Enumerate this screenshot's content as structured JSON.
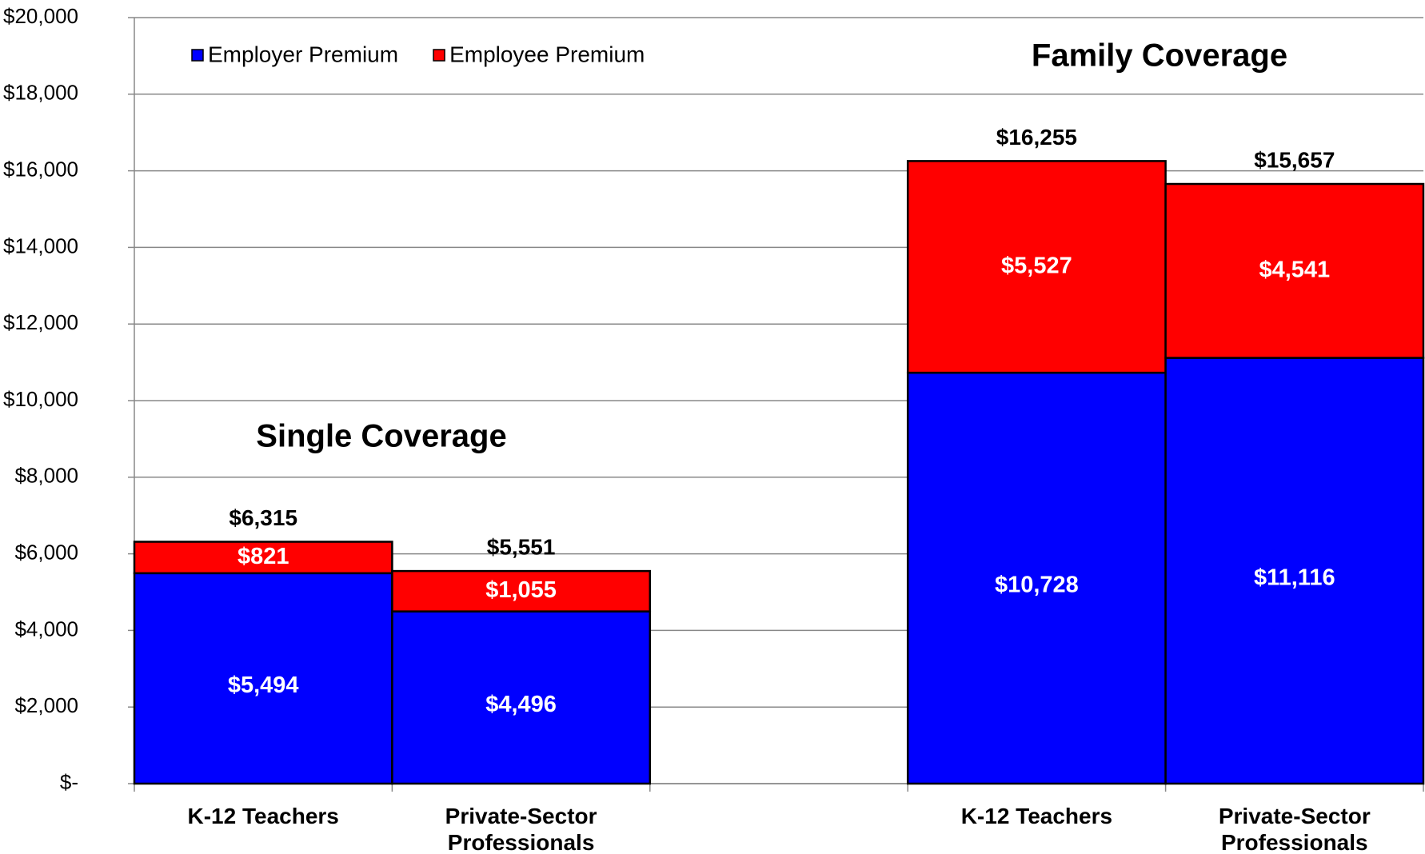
{
  "chart_data": {
    "type": "stacked-bar",
    "categories": [
      "K-12 Teachers",
      "Private-Sector Professionals",
      null,
      "K-12 Teachers",
      "Private-Sector Professionals"
    ],
    "series": [
      {
        "name": "Employer Premium",
        "color": "#0000ff",
        "values": [
          5494,
          4496,
          null,
          10728,
          11116
        ],
        "value_labels": [
          "$5,494",
          "$4,496",
          null,
          "$10,728",
          "$11,116"
        ]
      },
      {
        "name": "Employee Premium",
        "color": "#ff0000",
        "values": [
          821,
          1055,
          null,
          5527,
          4541
        ],
        "value_labels": [
          "$821",
          "$1,055",
          null,
          "$5,527",
          "$4,541"
        ]
      }
    ],
    "totals": {
      "values": [
        6315,
        5551,
        null,
        16255,
        15657
      ],
      "value_labels": [
        "$6,315",
        "$5,551",
        null,
        "$16,255",
        "$15,657"
      ]
    },
    "annotations": [
      "Single Coverage",
      "Family Coverage"
    ],
    "ylim": [
      0,
      20000
    ],
    "yticks": [
      {
        "value": 0,
        "label": "$-"
      },
      {
        "value": 2000,
        "label": "$2,000"
      },
      {
        "value": 4000,
        "label": "$4,000"
      },
      {
        "value": 6000,
        "label": "$6,000"
      },
      {
        "value": 8000,
        "label": "$8,000"
      },
      {
        "value": 10000,
        "label": "$10,000"
      },
      {
        "value": 12000,
        "label": "$12,000"
      },
      {
        "value": 14000,
        "label": "$14,000"
      },
      {
        "value": 16000,
        "label": "$16,000"
      },
      {
        "value": 18000,
        "label": "$18,000"
      },
      {
        "value": 20000,
        "label": "$20,000"
      }
    ],
    "grid": true,
    "legend": "top-left"
  }
}
